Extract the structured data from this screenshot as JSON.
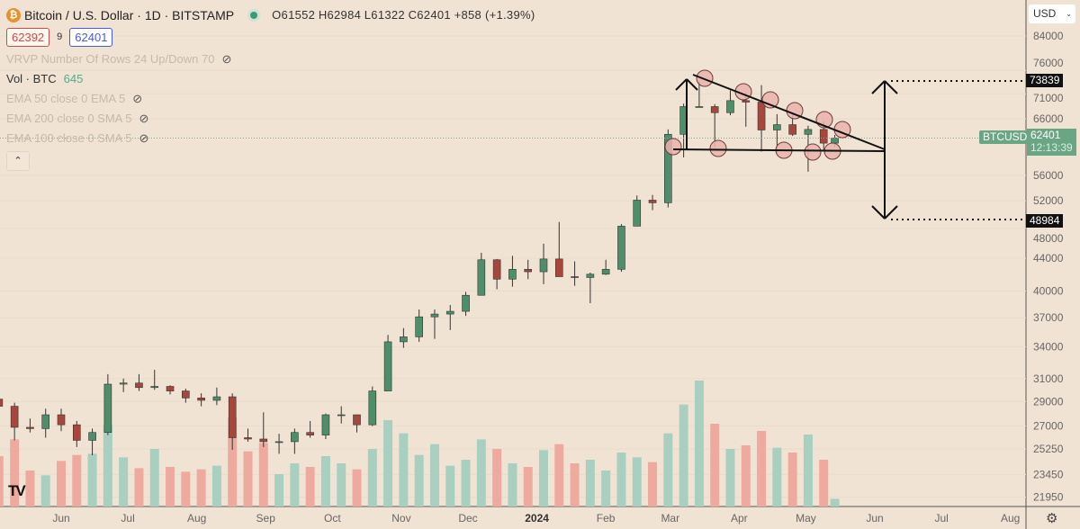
{
  "header": {
    "symbol_icon": "bitcoin-icon",
    "title": "Bitcoin / U.S. Dollar · 1D · BITSTAMP",
    "open": "O61552",
    "high": "H62984",
    "low": "L61322",
    "close": "C62401",
    "change": "+858 (+1.39%)",
    "sell_price": "62392",
    "spread": "9",
    "buy_price": "62401"
  },
  "indicators": [
    {
      "label": "VRVP Number Of Rows 24 Up/Down 70",
      "hidden": true
    },
    {
      "label": "Vol · BTC",
      "value": "645",
      "hidden": false
    },
    {
      "label": "EMA 50 close 0 EMA 5",
      "hidden": true
    },
    {
      "label": "EMA 200 close 0 SMA 5",
      "hidden": true
    },
    {
      "label": "EMA 100 close 0 SMA 5",
      "hidden": true
    }
  ],
  "currency": "USD",
  "price_tag": {
    "symbol": "BTCUSD",
    "price": "62401",
    "countdown": "12:13:39"
  },
  "levels": {
    "upper": "73839",
    "lower": "48984"
  },
  "colors": {
    "background": "#f1e3d3",
    "up": "#4f8e6a",
    "down": "#a8463c",
    "vol_up": "#a9cfc0",
    "vol_down": "#efaaa0",
    "annotation_circle": "#eab3ad"
  },
  "chart_data": {
    "type": "candlestick",
    "interval_shown": "1D (approximated weekly)",
    "y_scale": "log",
    "ylim": [
      21950,
      84000
    ],
    "y_ticks": [
      "84000",
      "76000",
      "71000",
      "66000",
      "56000",
      "52000",
      "48000",
      "44000",
      "40000",
      "37000",
      "34000",
      "31000",
      "29000",
      "27000",
      "25250",
      "23450",
      "21950"
    ],
    "x_ticks": [
      "Jun",
      "Jul",
      "Aug",
      "Sep",
      "Oct",
      "Nov",
      "Dec",
      "2024",
      "Feb",
      "Mar",
      "Apr",
      "May",
      "Jun",
      "Jul",
      "Aug"
    ],
    "grid": true,
    "candles": [
      [
        "2023-05-04",
        29200,
        29800,
        27600,
        28600
      ],
      [
        "2023-05-11",
        28600,
        28900,
        25900,
        26900
      ],
      [
        "2023-05-18",
        26900,
        27600,
        26500,
        26800
      ],
      [
        "2023-05-25",
        26800,
        28400,
        26100,
        27900
      ],
      [
        "2023-06-01",
        27900,
        28400,
        26600,
        27100
      ],
      [
        "2023-06-08",
        27100,
        27400,
        25400,
        25900
      ],
      [
        "2023-06-15",
        25900,
        26800,
        24800,
        26500
      ],
      [
        "2023-06-22",
        26500,
        31400,
        26300,
        30500
      ],
      [
        "2023-06-29",
        30500,
        31000,
        29800,
        30600
      ],
      [
        "2023-07-06",
        30600,
        31400,
        29900,
        30200
      ],
      [
        "2023-07-13",
        30200,
        31800,
        30000,
        30300
      ],
      [
        "2023-07-20",
        30300,
        30400,
        29600,
        29900
      ],
      [
        "2023-07-27",
        29900,
        30100,
        28900,
        29300
      ],
      [
        "2023-08-03",
        29300,
        29700,
        28600,
        29100
      ],
      [
        "2023-08-10",
        29100,
        30200,
        28700,
        29400
      ],
      [
        "2023-08-17",
        29400,
        29700,
        25200,
        26100
      ],
      [
        "2023-08-24",
        26100,
        26800,
        25800,
        26000
      ],
      [
        "2023-08-31",
        26000,
        28100,
        25400,
        25800
      ],
      [
        "2023-09-07",
        25800,
        26400,
        24900,
        25800
      ],
      [
        "2023-09-14",
        25800,
        26800,
        24900,
        26500
      ],
      [
        "2023-09-21",
        26500,
        27400,
        26100,
        26300
      ],
      [
        "2023-09-28",
        26300,
        28000,
        26000,
        27900
      ],
      [
        "2023-10-05",
        27900,
        28600,
        27200,
        27900
      ],
      [
        "2023-10-12",
        27900,
        27900,
        26500,
        27100
      ],
      [
        "2023-10-19",
        27100,
        30300,
        27000,
        29900
      ],
      [
        "2023-10-26",
        29900,
        35200,
        29900,
        34500
      ],
      [
        "2023-11-02",
        34500,
        35900,
        33900,
        35000
      ],
      [
        "2023-11-09",
        35000,
        37900,
        34500,
        37100
      ],
      [
        "2023-11-16",
        37100,
        37900,
        34800,
        37400
      ],
      [
        "2023-11-23",
        37400,
        38400,
        35700,
        37700
      ],
      [
        "2023-11-30",
        37700,
        39900,
        37200,
        39500
      ],
      [
        "2023-12-07",
        39500,
        44700,
        39500,
        43800
      ],
      [
        "2023-12-14",
        43800,
        43900,
        40200,
        41400
      ],
      [
        "2023-12-21",
        41400,
        44300,
        40500,
        42600
      ],
      [
        "2023-12-28",
        42600,
        43800,
        41400,
        42300
      ],
      [
        "2024-01-04",
        42300,
        45900,
        40800,
        43900
      ],
      [
        "2024-01-11",
        43900,
        48900,
        41700,
        41700
      ],
      [
        "2024-01-18",
        41700,
        43600,
        40600,
        41600
      ],
      [
        "2024-01-25",
        41600,
        42200,
        38600,
        42000
      ],
      [
        "2024-02-01",
        42000,
        43800,
        41900,
        42600
      ],
      [
        "2024-02-08",
        42600,
        48600,
        42300,
        48300
      ],
      [
        "2024-02-15",
        48300,
        52800,
        48300,
        52100
      ],
      [
        "2024-02-22",
        52100,
        52900,
        50600,
        51700
      ],
      [
        "2024-02-29",
        51700,
        64000,
        51000,
        63100
      ],
      [
        "2024-03-07",
        63100,
        69000,
        59000,
        68400
      ],
      [
        "2024-03-14",
        68400,
        73800,
        68300,
        68400
      ],
      [
        "2024-03-21",
        68400,
        68900,
        60800,
        67200
      ],
      [
        "2024-03-28",
        67200,
        71700,
        66700,
        69600
      ],
      [
        "2024-04-04",
        69600,
        71300,
        64500,
        69300
      ],
      [
        "2024-04-11",
        69300,
        72800,
        60000,
        63900
      ],
      [
        "2024-04-18",
        63900,
        66900,
        59600,
        64900
      ],
      [
        "2024-04-25",
        64900,
        67200,
        62800,
        63100
      ],
      [
        "2024-05-02",
        63100,
        64700,
        56600,
        64000
      ],
      [
        "2024-05-09",
        64000,
        65500,
        60200,
        61500
      ],
      [
        "2024-05-14",
        61500,
        62984,
        60800,
        62401
      ]
    ],
    "volume": [
      4200,
      5600,
      3000,
      2600,
      3800,
      4300,
      4400,
      6800,
      4100,
      3200,
      4800,
      3300,
      2900,
      3100,
      3400,
      7400,
      4600,
      5300,
      2700,
      3600,
      3300,
      4200,
      3600,
      3100,
      4800,
      7200,
      6100,
      4300,
      5200,
      3400,
      3900,
      5600,
      4800,
      3600,
      3300,
      4700,
      5200,
      3600,
      3900,
      3000,
      4500,
      4100,
      3700,
      6100,
      8500,
      10500,
      6900,
      4800,
      5100,
      6300,
      4900,
      4500,
      6000,
      3900,
      645
    ]
  }
}
